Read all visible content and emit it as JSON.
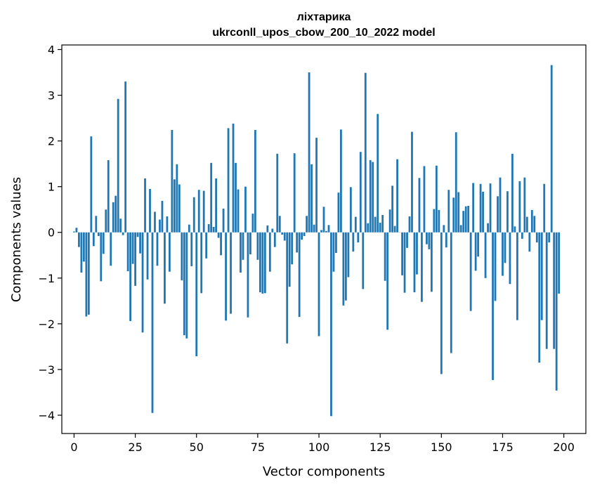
{
  "chart_data": {
    "type": "bar",
    "title_line1": "ліхтарика",
    "title_line2": "ukrconll_upos_cbow_200_10_2022 model",
    "xlabel": "Vector components",
    "ylabel": "Components values",
    "xlim": [
      -5,
      209
    ],
    "ylim": [
      -4.4,
      4.1
    ],
    "xticks": [
      0,
      25,
      50,
      75,
      100,
      125,
      150,
      175,
      200
    ],
    "yticks": [
      -4,
      -3,
      -2,
      -1,
      0,
      1,
      2,
      3,
      4
    ],
    "ytick_labels": [
      "−4",
      "−3",
      "−2",
      "−1",
      "0",
      "1",
      "2",
      "3",
      "4"
    ],
    "bar_color": "#1f77b4",
    "values": [
      0.02,
      0.1,
      -0.32,
      -0.88,
      -0.64,
      -1.84,
      -1.8,
      2.1,
      -0.3,
      0.36,
      -0.08,
      -1.07,
      -0.47,
      0.5,
      1.58,
      -0.73,
      0.66,
      0.8,
      2.92,
      0.3,
      -0.06,
      3.3,
      -0.85,
      -1.94,
      -0.69,
      -1.17,
      -0.1,
      -0.46,
      -2.19,
      1.18,
      -1.03,
      0.95,
      -3.95,
      0.45,
      -0.73,
      0.28,
      0.69,
      -1.56,
      0.35,
      -0.86,
      2.24,
      1.16,
      1.49,
      1.05,
      -1.05,
      -2.25,
      -2.32,
      0.17,
      -0.74,
      0.77,
      -2.71,
      0.93,
      -1.33,
      0.91,
      -0.57,
      0.18,
      1.52,
      0.12,
      1.18,
      -0.12,
      -0.5,
      0.52,
      -1.93,
      2.28,
      -1.78,
      2.38,
      1.52,
      0.94,
      -0.88,
      -0.6,
      1.0,
      -1.86,
      -0.48,
      0.41,
      2.24,
      -0.6,
      -1.31,
      -1.34,
      -1.33,
      0.15,
      -0.86,
      0.08,
      -0.32,
      1.72,
      0.36,
      -0.05,
      -0.18,
      -2.43,
      -1.19,
      -0.7,
      1.73,
      -0.44,
      -1.85,
      -0.16,
      -0.08,
      0.36,
      3.5,
      1.49,
      0.17,
      2.07,
      -2.27,
      0.05,
      0.56,
      0.03,
      0.16,
      -4.02,
      -0.86,
      -0.45,
      0.87,
      2.25,
      -1.6,
      -1.49,
      -0.98,
      0.99,
      -0.42,
      0.34,
      -0.22,
      1.76,
      -1.24,
      3.49,
      0.2,
      1.58,
      1.54,
      0.34,
      2.59,
      0.21,
      0.38,
      -1.06,
      -2.13,
      0.5,
      1.02,
      0.14,
      1.6,
      0.0,
      -0.94,
      -1.32,
      -0.34,
      0.35,
      2.2,
      -1.31,
      -0.92,
      1.19,
      -1.52,
      1.45,
      -0.26,
      -0.37,
      -1.3,
      0.51,
      1.46,
      0.49,
      -3.1,
      0.16,
      -0.33,
      0.93,
      -2.64,
      0.76,
      2.19,
      0.88,
      0.16,
      0.47,
      0.57,
      0.58,
      -1.72,
      1.08,
      -0.84,
      -0.53,
      1.06,
      0.89,
      -1.0,
      0.2,
      1.07,
      -3.23,
      -1.5,
      0.79,
      1.2,
      -0.95,
      -0.67,
      0.9,
      -1.13,
      1.72,
      0.13,
      -1.92,
      1.12,
      -0.14,
      1.2,
      0.34,
      -0.42,
      0.49,
      0.36,
      -0.22,
      -2.85,
      -1.92,
      1.06,
      -2.55,
      -0.22,
      3.66,
      -2.55,
      -3.46,
      -1.34
    ]
  }
}
